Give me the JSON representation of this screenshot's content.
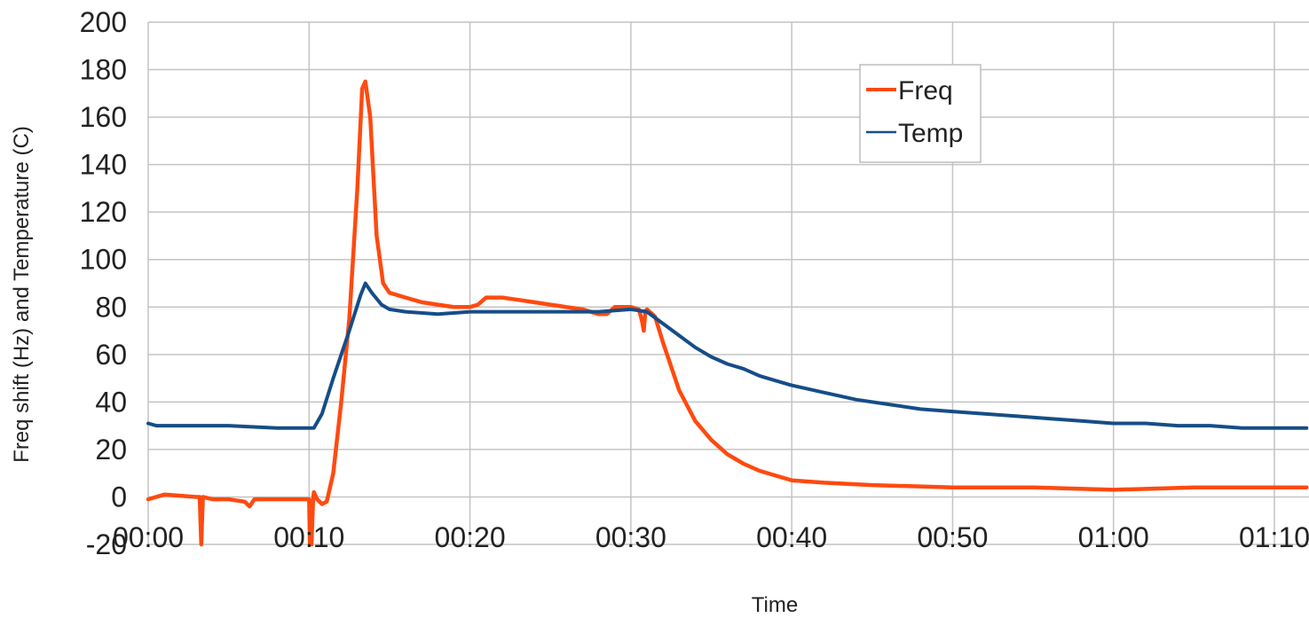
{
  "chart_data": {
    "type": "line",
    "title": "",
    "xlabel": "Time",
    "ylabel": "Freq  shift (Hz) and Temperature (C)",
    "ylim": [
      -20,
      200
    ],
    "xlim_minutes": [
      0,
      72
    ],
    "y_ticks": [
      -20,
      0,
      20,
      40,
      60,
      80,
      100,
      120,
      140,
      160,
      180,
      200
    ],
    "x_ticks": [
      {
        "minutes": 0,
        "label": "00:00"
      },
      {
        "minutes": 10,
        "label": "00:10"
      },
      {
        "minutes": 20,
        "label": "00:20"
      },
      {
        "minutes": 30,
        "label": "00:30"
      },
      {
        "minutes": 40,
        "label": "00:40"
      },
      {
        "minutes": 50,
        "label": "00:50"
      },
      {
        "minutes": 60,
        "label": "01:00"
      },
      {
        "minutes": 70,
        "label": "01:10"
      }
    ],
    "grid": true,
    "legend_position": "top-right",
    "series": [
      {
        "name": "Freq",
        "color": "#ff4a10",
        "points": [
          [
            0,
            -1
          ],
          [
            1,
            1
          ],
          [
            2,
            0.5
          ],
          [
            3,
            0
          ],
          [
            3.2,
            0
          ],
          [
            3.3,
            -20
          ],
          [
            3.4,
            0
          ],
          [
            4,
            -1
          ],
          [
            5,
            -1
          ],
          [
            6,
            -2
          ],
          [
            6.3,
            -4
          ],
          [
            6.6,
            -1
          ],
          [
            8,
            -1
          ],
          [
            10,
            -1
          ],
          [
            10.05,
            -20
          ],
          [
            10.15,
            -20
          ],
          [
            10.25,
            -1
          ],
          [
            10.3,
            2
          ],
          [
            10.5,
            -1
          ],
          [
            10.8,
            -3
          ],
          [
            11.1,
            -2
          ],
          [
            11.5,
            10
          ],
          [
            12,
            40
          ],
          [
            12.5,
            75
          ],
          [
            13,
            130
          ],
          [
            13.3,
            172
          ],
          [
            13.5,
            175
          ],
          [
            13.8,
            160
          ],
          [
            14.2,
            110
          ],
          [
            14.6,
            90
          ],
          [
            15,
            86
          ],
          [
            16,
            84
          ],
          [
            17,
            82
          ],
          [
            18,
            81
          ],
          [
            19,
            80
          ],
          [
            20,
            80
          ],
          [
            20.5,
            81
          ],
          [
            21,
            84
          ],
          [
            22,
            84
          ],
          [
            23,
            83
          ],
          [
            24,
            82
          ],
          [
            25,
            81
          ],
          [
            26,
            80
          ],
          [
            27,
            79
          ],
          [
            28,
            77
          ],
          [
            28.5,
            77
          ],
          [
            29,
            80
          ],
          [
            30,
            80
          ],
          [
            30.5,
            79
          ],
          [
            30.7,
            74
          ],
          [
            30.8,
            70
          ],
          [
            30.9,
            78
          ],
          [
            31,
            79
          ],
          [
            31.5,
            76
          ],
          [
            32,
            65
          ],
          [
            33,
            45
          ],
          [
            34,
            32
          ],
          [
            35,
            24
          ],
          [
            36,
            18
          ],
          [
            37,
            14
          ],
          [
            38,
            11
          ],
          [
            39,
            9
          ],
          [
            40,
            7
          ],
          [
            42,
            6
          ],
          [
            45,
            5
          ],
          [
            50,
            4
          ],
          [
            55,
            4
          ],
          [
            60,
            3
          ],
          [
            65,
            4
          ],
          [
            70,
            4
          ],
          [
            72,
            4
          ]
        ]
      },
      {
        "name": "Temp",
        "color": "#164d87",
        "points": [
          [
            0,
            31
          ],
          [
            0.5,
            30
          ],
          [
            2,
            30
          ],
          [
            5,
            30
          ],
          [
            8,
            29
          ],
          [
            10,
            29
          ],
          [
            10.3,
            29
          ],
          [
            10.8,
            35
          ],
          [
            11.5,
            50
          ],
          [
            12.5,
            70
          ],
          [
            13.2,
            85
          ],
          [
            13.5,
            90
          ],
          [
            13.9,
            86
          ],
          [
            14.5,
            81
          ],
          [
            15,
            79
          ],
          [
            16,
            78
          ],
          [
            18,
            77
          ],
          [
            20,
            78
          ],
          [
            22,
            78
          ],
          [
            24,
            78
          ],
          [
            26,
            78
          ],
          [
            28,
            78
          ],
          [
            30,
            79
          ],
          [
            31,
            78
          ],
          [
            32,
            73
          ],
          [
            33,
            68
          ],
          [
            34,
            63
          ],
          [
            35,
            59
          ],
          [
            36,
            56
          ],
          [
            37,
            54
          ],
          [
            38,
            51
          ],
          [
            39,
            49
          ],
          [
            40,
            47
          ],
          [
            42,
            44
          ],
          [
            44,
            41
          ],
          [
            46,
            39
          ],
          [
            48,
            37
          ],
          [
            50,
            36
          ],
          [
            52,
            35
          ],
          [
            54,
            34
          ],
          [
            56,
            33
          ],
          [
            58,
            32
          ],
          [
            60,
            31
          ],
          [
            62,
            31
          ],
          [
            64,
            30
          ],
          [
            66,
            30
          ],
          [
            68,
            29
          ],
          [
            70,
            29
          ],
          [
            72,
            29
          ]
        ]
      }
    ]
  },
  "legend": {
    "items": [
      {
        "label": "Freq",
        "color": "#ff4a10"
      },
      {
        "label": "Temp",
        "color": "#164d87"
      }
    ]
  }
}
